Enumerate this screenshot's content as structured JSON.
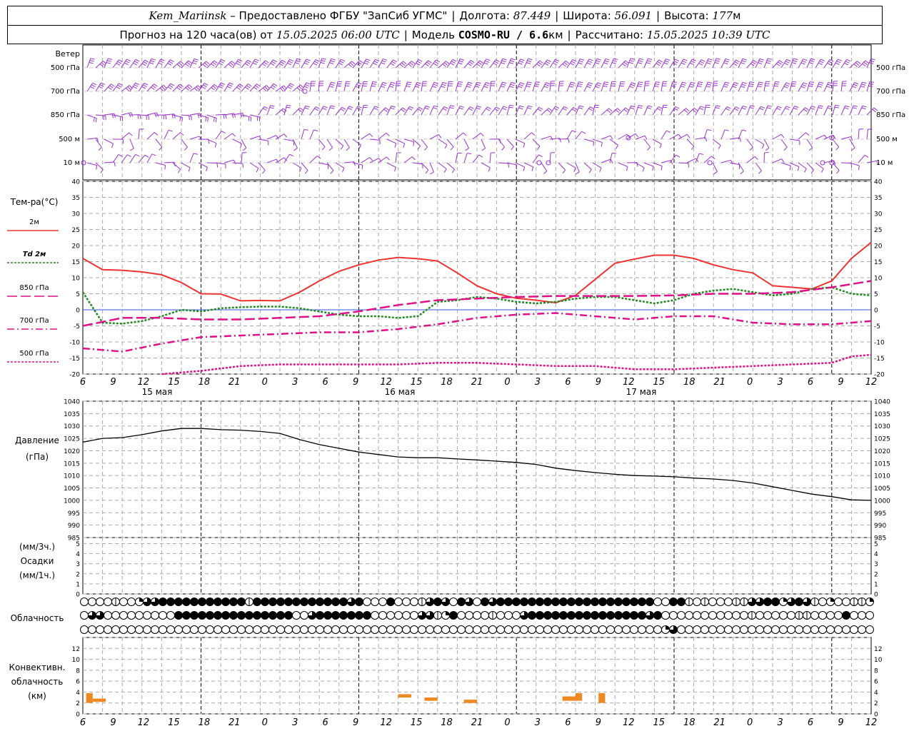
{
  "header": {
    "station": "Kem_Mariinsk",
    "provided_by": "– Предоставлено ФГБУ \"ЗапСиб УГМС\"",
    "lon_label": "Долгота:",
    "lon_value": "87.449",
    "lat_label": "Широта:",
    "lat_value": "56.091",
    "alt_label": "Высота:",
    "alt_value": "177",
    "alt_unit": "м",
    "forecast_label": "Прогноз на 120 часа(ов) от",
    "forecast_start": "15.05.2025 06:00 UTC",
    "model_label": "Модель",
    "model_name": "COSMO-RU / 6.6",
    "model_unit": "км",
    "computed_label": "Рассчитано:",
    "computed_value": "15.05.2025 10:39 UTC"
  },
  "x_ticks": [
    "6",
    "9",
    "12",
    "15",
    "18",
    "21",
    "0",
    "3",
    "6",
    "9",
    "12",
    "15",
    "18",
    "21",
    "0",
    "3",
    "6",
    "9",
    "12",
    "15",
    "18",
    "21",
    "0",
    "3",
    "6",
    "9",
    "12"
  ],
  "dates": [
    "15 мая",
    "16 мая",
    "17 мая"
  ],
  "wind_panel": {
    "title": "Ветер",
    "levels": [
      "500 гПа",
      "700 гПа",
      "850 гПа",
      "500 м",
      "10  м"
    ],
    "color": "#9933cc"
  },
  "temp_panel": {
    "title": "Тем-ра(°C)",
    "legend": [
      {
        "label": "2м",
        "color": "#ee3333",
        "dash": ""
      },
      {
        "label": "Td  2м",
        "color": "#228822",
        "dash": "3,2"
      },
      {
        "label": "850 гПа",
        "color": "#dd1188",
        "dash": "14,5"
      },
      {
        "label": "700 гПа",
        "color": "#dd1188",
        "dash": "10,4,2,4"
      },
      {
        "label": "500 гПа",
        "color": "#dd1188",
        "dash": "3,2"
      }
    ],
    "y_ticks": [
      "40",
      "35",
      "30",
      "25",
      "20",
      "15",
      "10",
      "5",
      "0",
      "-5",
      "-10",
      "-15",
      "-20"
    ]
  },
  "pressure_panel": {
    "title": "Давление",
    "unit": "(гПа)",
    "y_ticks": [
      "1040",
      "1035",
      "1030",
      "1025",
      "1020",
      "1015",
      "1010",
      "1005",
      "1000",
      "995",
      "990",
      "985"
    ]
  },
  "precip_panel": {
    "unit_top": "(мм/3ч.)",
    "title": "Осадки",
    "unit_bottom": "(мм/1ч.)",
    "y_ticks": [
      "5",
      "4",
      "3",
      "2",
      "1",
      "0"
    ]
  },
  "cloud_panel": {
    "title": "Облачность"
  },
  "conv_panel": {
    "title_1": "Конвективн.",
    "title_2": "облачность",
    "unit": "(км)",
    "y_ticks": [
      "12",
      "10",
      "8",
      "6",
      "4",
      "2",
      "0"
    ],
    "color": "#ee8822"
  },
  "chart_data": [
    {
      "type": "line",
      "title": "Тем-ра(°C)",
      "x_unit": "hours since 15.05.2025 06:00 UTC",
      "ylim": [
        -20,
        40
      ],
      "series": [
        {
          "name": "2м",
          "x": [
            0,
            3,
            6,
            9,
            12,
            15,
            18,
            21,
            24,
            27,
            30,
            33,
            36,
            39,
            42,
            45,
            48,
            51,
            54,
            57,
            60,
            63,
            66,
            69,
            72,
            75,
            78,
            81,
            84,
            87,
            90,
            93,
            96,
            99,
            102,
            105,
            108,
            111,
            114,
            117,
            120
          ],
          "y": [
            16,
            12.5,
            12.3,
            11.8,
            10.9,
            8.5,
            5,
            4.9,
            2.8,
            2.9,
            2.8,
            5.5,
            9,
            12,
            14,
            15.5,
            16.3,
            15.9,
            15.2,
            11.5,
            7.5,
            5,
            3.6,
            3,
            2.2,
            4.5,
            9.5,
            14.5,
            15.8,
            17,
            17,
            16,
            14,
            12.5,
            11.5,
            7.5,
            7,
            6.5,
            9,
            16,
            21
          ]
        },
        {
          "name": "Td  2м",
          "x": [
            0,
            3,
            6,
            9,
            12,
            15,
            18,
            21,
            24,
            27,
            30,
            33,
            36,
            39,
            42,
            45,
            48,
            51,
            54,
            57,
            60,
            63,
            66,
            69,
            72,
            75,
            78,
            81,
            84,
            87,
            90,
            93,
            96,
            99,
            102,
            105,
            108,
            111,
            114,
            117,
            120
          ],
          "y": [
            5.5,
            -4,
            -4.3,
            -3.5,
            -2,
            0,
            -0.5,
            0.5,
            0.8,
            1,
            1,
            0.5,
            -0.5,
            -1.5,
            -2,
            -2,
            -2.5,
            -2,
            2.5,
            3,
            4,
            3.5,
            2.5,
            2,
            2.5,
            3.5,
            4,
            4,
            3,
            2,
            3,
            5,
            6,
            6.5,
            5.5,
            4.5,
            5,
            6.5,
            7,
            5,
            4.5
          ]
        },
        {
          "name": "850 гПа",
          "x": [
            0,
            6,
            12,
            18,
            24,
            30,
            36,
            42,
            48,
            54,
            60,
            66,
            72,
            78,
            84,
            90,
            96,
            102,
            108,
            114,
            120
          ],
          "y": [
            -5,
            -2.5,
            -2.5,
            -3,
            -3,
            -2.5,
            -2,
            -0.5,
            1.5,
            3,
            3.5,
            4,
            4.3,
            4.3,
            4.3,
            4.5,
            5,
            5,
            5.5,
            7,
            9
          ]
        },
        {
          "name": "700 гПа",
          "x": [
            0,
            6,
            12,
            18,
            24,
            30,
            36,
            42,
            48,
            54,
            60,
            66,
            72,
            78,
            84,
            90,
            96,
            102,
            108,
            114,
            120
          ],
          "y": [
            -12,
            -13,
            -10.5,
            -8.5,
            -8,
            -7.5,
            -7,
            -7,
            -6,
            -4.5,
            -2.5,
            -1.5,
            -1,
            -2,
            -3,
            -2,
            -2,
            -4,
            -4.5,
            -4.5,
            -3.5
          ]
        },
        {
          "name": "500 гПа",
          "x": [
            12,
            18,
            24,
            30,
            36,
            42,
            48,
            54,
            60,
            66,
            72,
            78,
            84,
            90,
            96,
            102,
            108,
            114,
            117,
            120
          ],
          "y": [
            -20,
            -19,
            -17.5,
            -17,
            -17,
            -17,
            -17,
            -16.5,
            -16.5,
            -17,
            -17.5,
            -17.5,
            -18.5,
            -18.5,
            -18,
            -17.5,
            -17,
            -16.5,
            -14.5,
            -14
          ]
        }
      ]
    },
    {
      "type": "line",
      "title": "Давление",
      "ylabel": "(гПа)",
      "x_unit": "hours since 15.05.2025 06:00 UTC",
      "ylim": [
        985,
        1040
      ],
      "series": [
        {
          "x": [
            0,
            3,
            6,
            9,
            12,
            15,
            18,
            21,
            24,
            27,
            30,
            33,
            36,
            39,
            42,
            45,
            48,
            51,
            54,
            57,
            60,
            63,
            66,
            69,
            72,
            75,
            78,
            81,
            84,
            87,
            90,
            93,
            96,
            99,
            102,
            105,
            108,
            111,
            114,
            117,
            120
          ],
          "y": [
            1023.5,
            1025,
            1025.3,
            1026.5,
            1028,
            1029,
            1029,
            1028.5,
            1028.3,
            1027.8,
            1027,
            1024.5,
            1022.5,
            1021,
            1019.5,
            1018.5,
            1017.5,
            1017.2,
            1017.2,
            1016.7,
            1016.3,
            1015.8,
            1015.3,
            1014.5,
            1013,
            1012,
            1011.2,
            1010.5,
            1010,
            1009.8,
            1009.5,
            1009,
            1008.6,
            1008,
            1007,
            1005.5,
            1004,
            1002.5,
            1001.5,
            1000.2,
            1000
          ]
        }
      ]
    },
    {
      "type": "bar",
      "title": "Конвективн. облачность",
      "ylabel": "(км)",
      "x_unit": "hours since 15.05.2025 06:00 UTC",
      "ylim": [
        0,
        13
      ],
      "bars": [
        {
          "x0": 0.5,
          "x1": 1.5,
          "bottom": 2,
          "top": 3.8
        },
        {
          "x0": 1.5,
          "x1": 3.5,
          "bottom": 2.2,
          "top": 2.8
        },
        {
          "x0": 48,
          "x1": 50,
          "bottom": 3,
          "top": 3.6
        },
        {
          "x0": 52,
          "x1": 54,
          "bottom": 2.4,
          "top": 3
        },
        {
          "x0": 58,
          "x1": 60,
          "bottom": 2,
          "top": 2.6
        },
        {
          "x0": 73,
          "x1": 75,
          "bottom": 2.4,
          "top": 3.2
        },
        {
          "x0": 75,
          "x1": 76,
          "bottom": 2.4,
          "top": 3.8
        },
        {
          "x0": 78.5,
          "x1": 79.5,
          "bottom": 2,
          "top": 3.8
        }
      ]
    }
  ],
  "cloud_cover": {
    "note_levels": [
      "high",
      "middle",
      "low"
    ],
    "rows": [
      "0000100233444444444441444444444444340004000134304304344444444444444444444004410100011334423431020011234",
      "0330000000004444444444444440034444444000000331240000100034444444444444443400000000000100000110000400000",
      "0000000000000000000000000000000000000000000000000000000000000000000000000023000000000000000000000000000"
    ]
  }
}
